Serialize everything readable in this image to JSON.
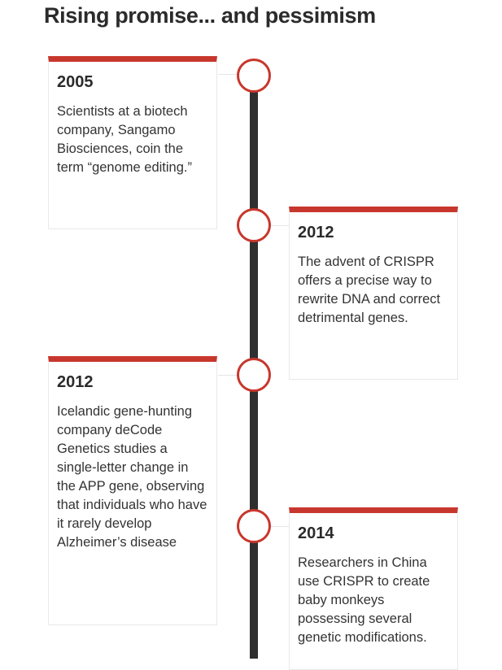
{
  "title": "Rising promise... and pessimism",
  "events": [
    {
      "year": "2005",
      "text": "Scientists at a biotech company, Sangamo Biosciences, coin the term “genome editing.”"
    },
    {
      "year": "2012",
      "text": "The advent of CRISPR offers a precise way to rewrite DNA and correct detrimental genes."
    },
    {
      "year": "2012",
      "text": "Icelandic gene-hunting company deCode Genetics studies a single-letter change in the APP gene, observing that individuals who have it rarely develop Alzheimer’s disease"
    },
    {
      "year": "2014",
      "text": "Researchers in China use CRISPR to create baby monkeys possessing several genetic modifications."
    }
  ],
  "colors": {
    "accent": "#c8372d",
    "spine": "#2f2f2f"
  }
}
